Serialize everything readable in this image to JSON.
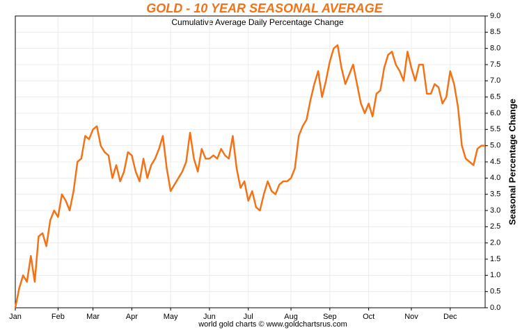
{
  "chart_data": {
    "type": "line",
    "title": "GOLD - 10 YEAR SEASONAL AVERAGE",
    "subtitle": "Cumulative Average Daily Percentage Change",
    "y_axis_label": "Seasonal Percentage Change",
    "source": "world gold charts © www.goldchartsrus.com",
    "categories": [
      "Jan",
      null,
      null,
      null,
      null,
      null,
      null,
      null,
      null,
      null,
      null,
      "Feb",
      null,
      null,
      null,
      null,
      null,
      null,
      null,
      null,
      "Mar",
      null,
      null,
      null,
      null,
      null,
      null,
      null,
      null,
      null,
      "Apr",
      null,
      null,
      null,
      null,
      null,
      null,
      null,
      null,
      null,
      "May",
      null,
      null,
      null,
      null,
      null,
      null,
      null,
      null,
      null,
      "Jun",
      null,
      null,
      null,
      null,
      null,
      null,
      null,
      null,
      null,
      "Jul",
      null,
      null,
      null,
      null,
      null,
      null,
      null,
      null,
      null,
      null,
      "Aug",
      null,
      null,
      null,
      null,
      null,
      null,
      null,
      null,
      null,
      "Sep",
      null,
      null,
      null,
      null,
      null,
      null,
      null,
      null,
      null,
      "Oct",
      null,
      null,
      null,
      null,
      null,
      null,
      null,
      null,
      null,
      null,
      "Nov",
      null,
      null,
      null,
      null,
      null,
      null,
      null,
      null,
      null,
      "Dec",
      null,
      null,
      null,
      null,
      null,
      null,
      null,
      null,
      null
    ],
    "series": [
      {
        "name": "Gold",
        "color": "#f47216",
        "values": [
          0,
          0.6,
          1.0,
          0.8,
          1.6,
          0.8,
          2.2,
          2.3,
          1.9,
          2.7,
          3.0,
          2.8,
          3.5,
          3.3,
          3.0,
          3.6,
          4.5,
          4.6,
          5.3,
          5.2,
          5.5,
          5.6,
          5.0,
          4.8,
          4.7,
          4.0,
          4.4,
          3.9,
          4.2,
          4.8,
          4.7,
          4.2,
          3.9,
          4.6,
          4.0,
          4.4,
          4.6,
          4.9,
          5.3,
          4.3,
          3.6,
          3.8,
          4.0,
          4.2,
          4.5,
          5.4,
          4.6,
          4.2,
          4.9,
          4.6,
          4.6,
          4.7,
          4.6,
          4.9,
          4.7,
          4.6,
          5.3,
          4.3,
          3.7,
          3.9,
          3.3,
          3.6,
          3.1,
          3.0,
          3.5,
          3.9,
          3.6,
          3.5,
          3.8,
          3.9,
          3.9,
          4.0,
          4.3,
          5.3,
          5.6,
          5.8,
          6.4,
          6.9,
          7.3,
          6.5,
          7.0,
          7.6,
          8.0,
          8.1,
          7.4,
          6.9,
          7.2,
          7.5,
          6.9,
          6.3,
          6.0,
          6.3,
          5.9,
          6.6,
          6.7,
          7.4,
          7.8,
          7.9,
          7.5,
          7.3,
          7.0,
          7.9,
          7.4,
          7.0,
          7.5,
          7.5,
          6.6,
          6.6,
          6.9,
          6.8,
          6.3,
          6.5,
          7.3,
          6.9,
          6.2,
          5.0,
          4.6,
          4.5,
          4.4,
          4.9,
          5.0,
          5.0
        ]
      }
    ],
    "ylim": [
      0,
      9
    ],
    "yticks": [
      {
        "value": 0,
        "label": "0.0"
      },
      {
        "value": 0.5,
        "label": "0.5"
      },
      {
        "value": 1,
        "label": "1.0"
      },
      {
        "value": 1.5,
        "label": "1.5"
      },
      {
        "value": 2,
        "label": "2.0"
      },
      {
        "value": 2.5,
        "label": "2.5"
      },
      {
        "value": 3,
        "label": "3.0"
      },
      {
        "value": 3.5,
        "label": "3.5"
      },
      {
        "value": 4,
        "label": "4.0"
      },
      {
        "value": 4.5,
        "label": "4.5"
      },
      {
        "value": 5,
        "label": "5.0"
      },
      {
        "value": 5.5,
        "label": "5.5"
      },
      {
        "value": 6,
        "label": "6.0"
      },
      {
        "value": 6.5,
        "label": "6.5"
      },
      {
        "value": 7,
        "label": "7.0"
      },
      {
        "value": 7.5,
        "label": "7.5"
      },
      {
        "value": 8,
        "label": "8.0"
      },
      {
        "value": 8.5,
        "label": "8.5"
      },
      {
        "value": 9,
        "label": "9.0"
      }
    ],
    "grid": true
  }
}
